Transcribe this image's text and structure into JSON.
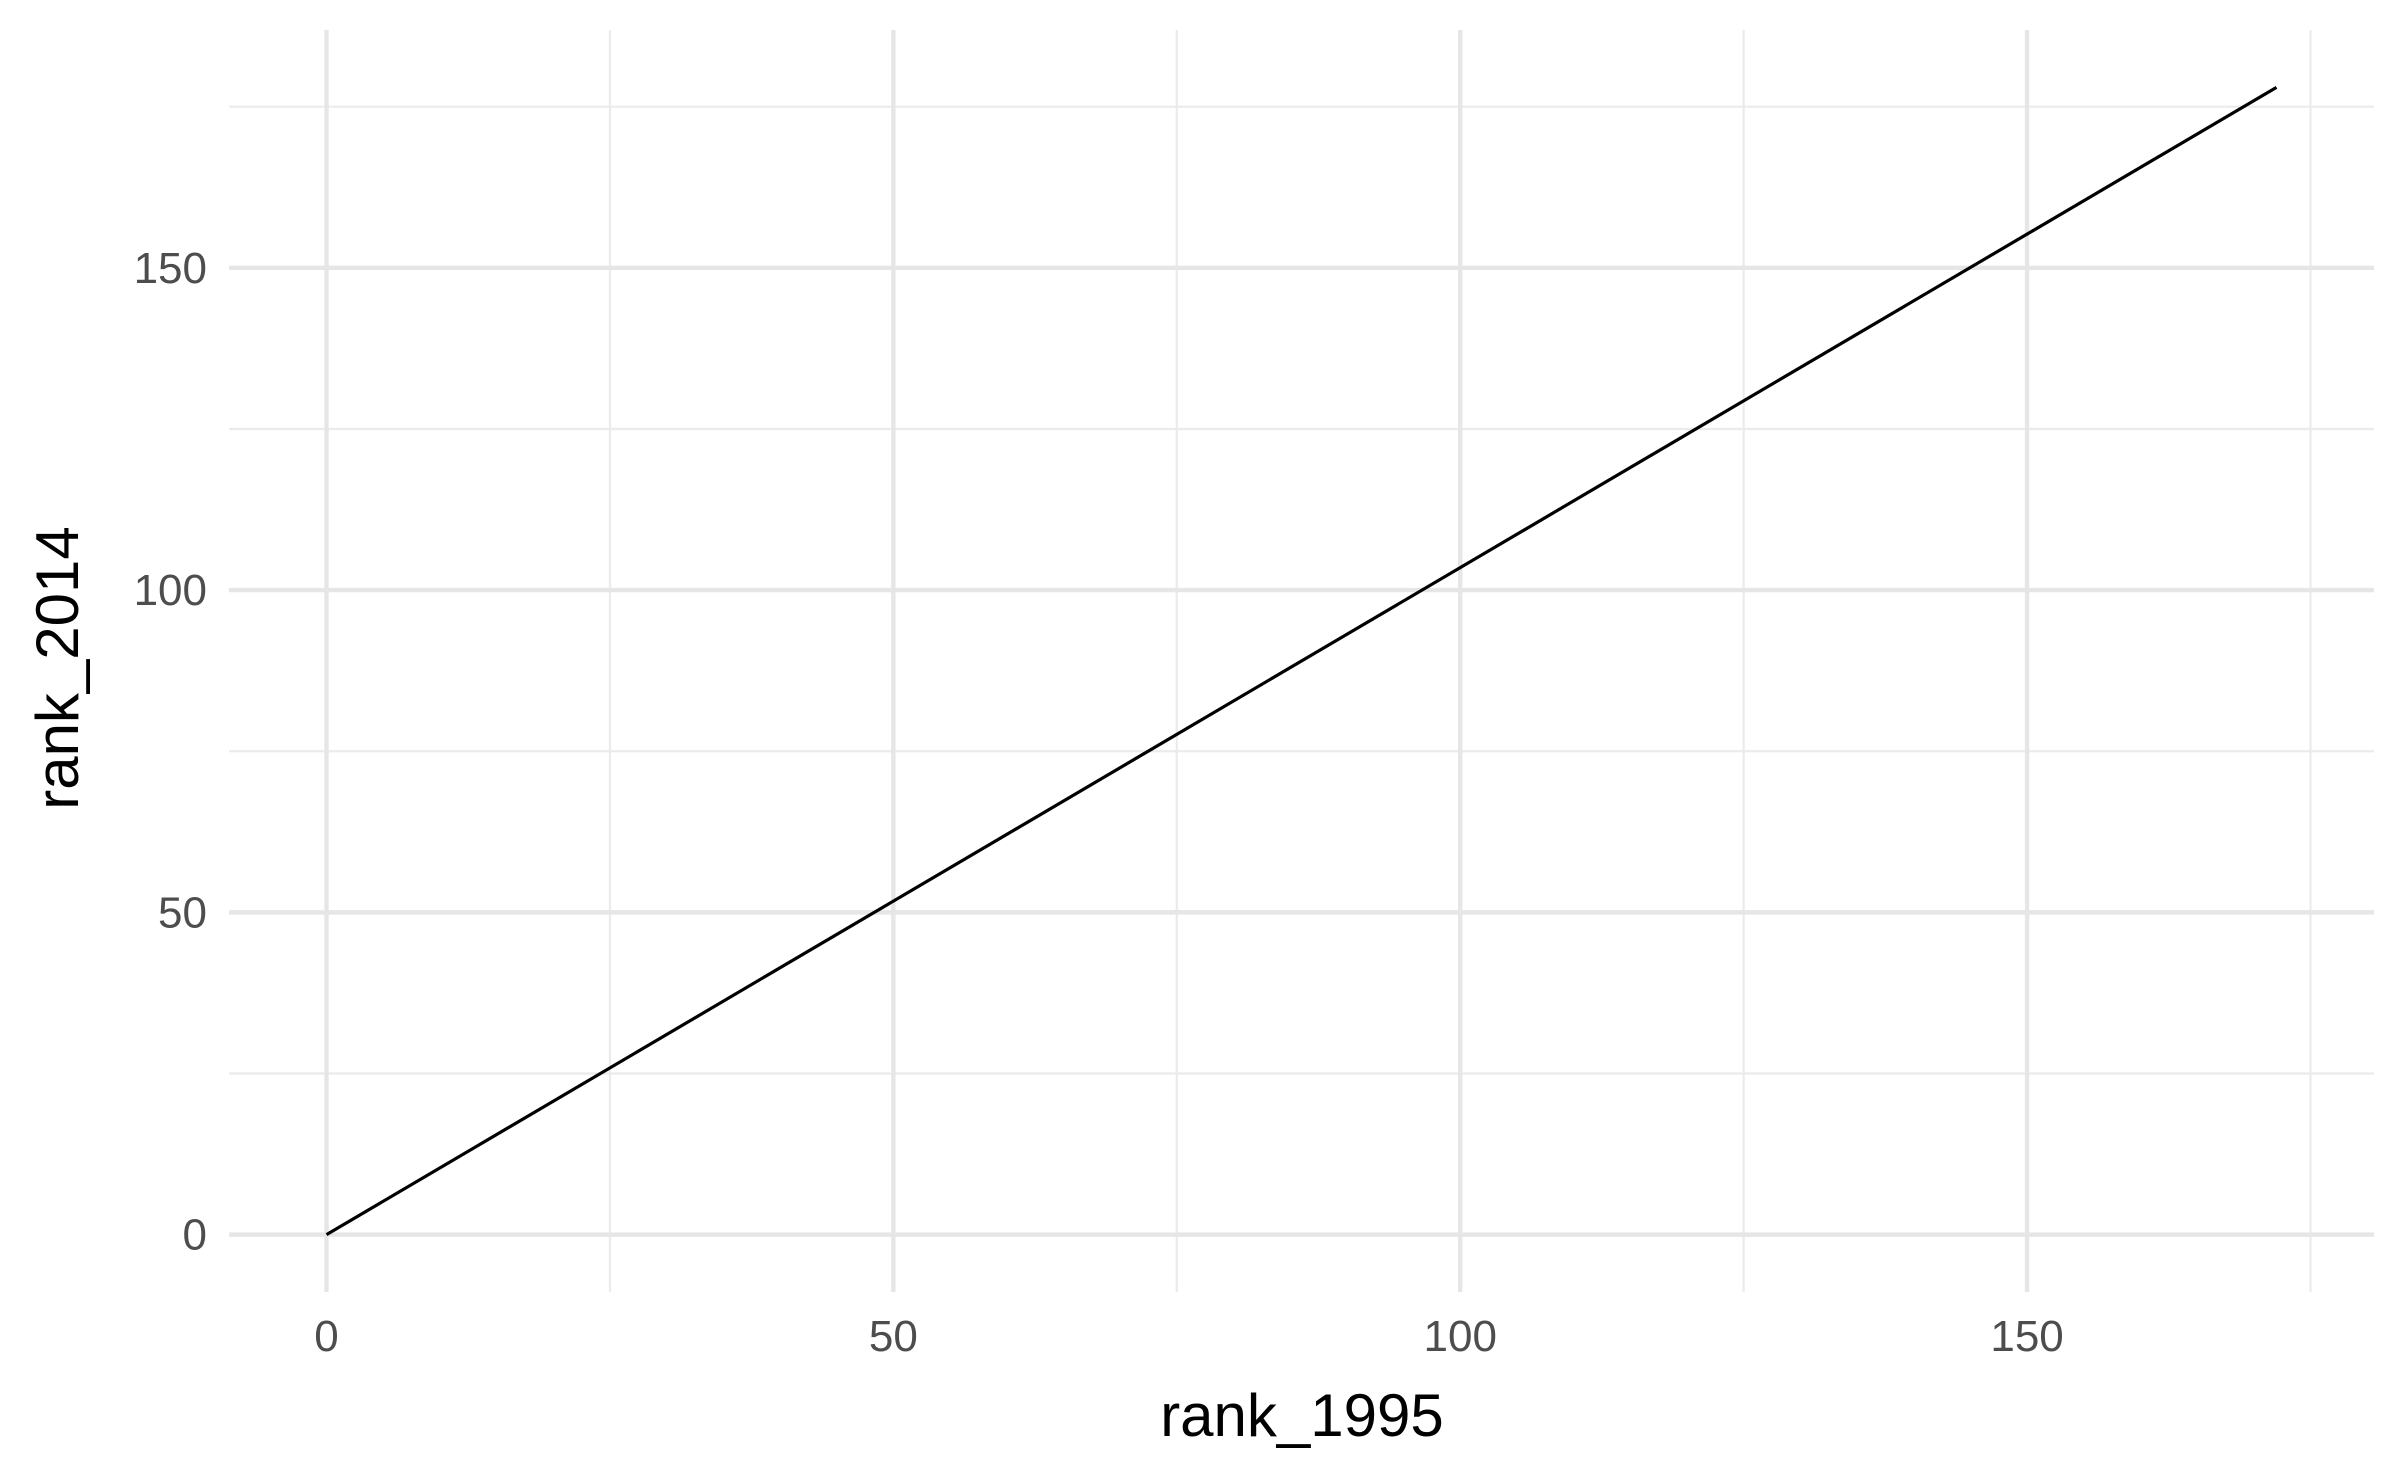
{
  "chart_data": {
    "type": "line",
    "title": "",
    "xlabel": "rank_1995",
    "ylabel": "rank_2014",
    "x_ticks": [
      0,
      50,
      100,
      150
    ],
    "y_ticks": [
      0,
      50,
      100,
      150
    ],
    "xlim": [
      -8.6,
      180.6
    ],
    "ylim": [
      -8.9,
      186.9
    ],
    "grid": true,
    "legend": "none",
    "series": [
      {
        "color": "#000000",
        "points": [
          {
            "x": 0,
            "y": 0
          },
          {
            "x": 172,
            "y": 178
          }
        ]
      }
    ]
  }
}
